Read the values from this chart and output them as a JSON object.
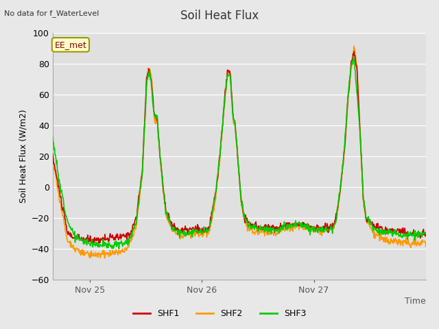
{
  "title": "Soil Heat Flux",
  "ylabel": "Soil Heat Flux (W/m2)",
  "xlabel": "Time",
  "top_left_note": "No data for f_WaterLevel",
  "legend_box_label": "EE_met",
  "ylim": [
    -60,
    100
  ],
  "yticks": [
    -60,
    -40,
    -20,
    0,
    20,
    40,
    60,
    80,
    100
  ],
  "xtick_labels": [
    "Nov 25",
    "Nov 26",
    "Nov 27"
  ],
  "bg_color": "#e8e8e8",
  "plot_bg_color": "#e0e0e0",
  "line_colors": {
    "SHF1": "#cc0000",
    "SHF2": "#ff9900",
    "SHF3": "#00cc00"
  },
  "line_width": 1.2,
  "legend_entries": [
    "SHF1",
    "SHF2",
    "SHF3"
  ],
  "xlim": [
    0,
    2.5
  ],
  "xtick_positions": [
    0.25,
    1.0,
    1.75
  ]
}
